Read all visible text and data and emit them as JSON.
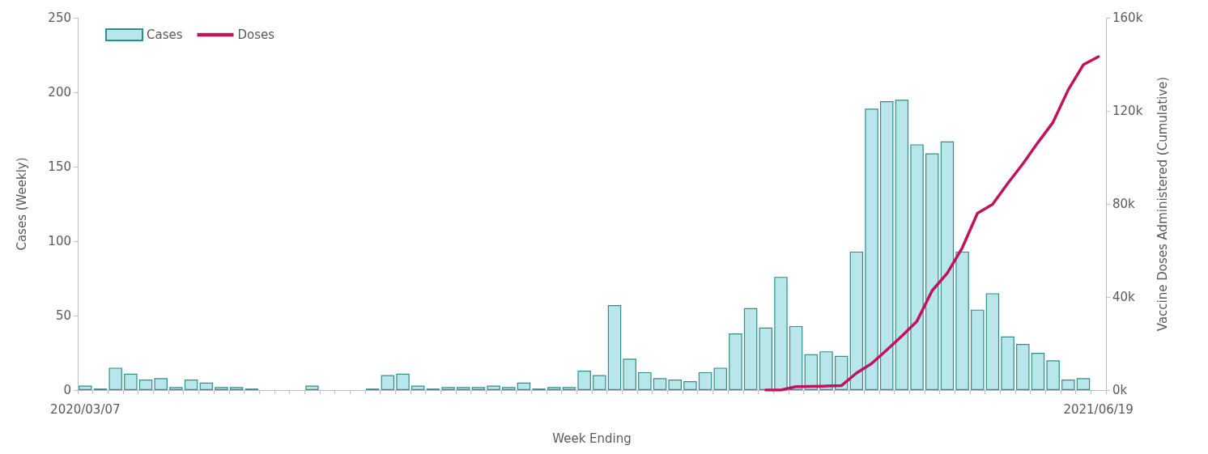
{
  "chart_data": {
    "type": "bar",
    "xlabel": "Week Ending",
    "ylabel": "Cases (Weekly)",
    "y2label": "Vaccine Doses Administered (Cumulative)",
    "categories": [
      "2020/03/07",
      null,
      null,
      null,
      null,
      null,
      null,
      null,
      null,
      null,
      null,
      null,
      null,
      null,
      null,
      null,
      null,
      null,
      null,
      null,
      null,
      null,
      null,
      null,
      null,
      null,
      null,
      null,
      null,
      null,
      null,
      null,
      null,
      null,
      null,
      null,
      null,
      null,
      null,
      null,
      null,
      null,
      null,
      null,
      null,
      null,
      null,
      null,
      null,
      null,
      null,
      null,
      null,
      null,
      null,
      null,
      null,
      null,
      null,
      null,
      null,
      null,
      null,
      null,
      null,
      null,
      null,
      "2021/06/19"
    ],
    "series": [
      {
        "name": "Cases",
        "color": "#b8e6ea",
        "values": [
          3,
          1,
          15,
          11,
          7,
          8,
          2,
          7,
          5,
          2,
          2,
          1,
          0,
          0,
          0,
          3,
          0,
          0,
          0,
          1,
          10,
          11,
          3,
          1,
          2,
          2,
          2,
          3,
          2,
          5,
          1,
          2,
          2,
          13,
          10,
          57,
          21,
          12,
          8,
          7,
          6,
          12,
          15,
          38,
          55,
          42,
          76,
          43,
          24,
          26,
          23,
          93,
          189,
          194,
          195,
          165,
          159,
          167,
          93,
          54,
          65,
          36,
          31,
          25,
          20,
          7,
          8,
          0
        ]
      },
      {
        "name": "Doses",
        "type": "line",
        "axis": "y2",
        "color": "#c0135f",
        "values": [
          null,
          null,
          null,
          null,
          null,
          null,
          null,
          null,
          null,
          null,
          null,
          null,
          null,
          null,
          null,
          null,
          null,
          null,
          null,
          null,
          null,
          null,
          null,
          null,
          null,
          null,
          null,
          null,
          null,
          null,
          null,
          null,
          null,
          null,
          null,
          null,
          null,
          null,
          null,
          null,
          null,
          null,
          null,
          null,
          null,
          0,
          0,
          1500,
          1600,
          1700,
          1900,
          7300,
          11400,
          17200,
          23200,
          29600,
          42700,
          50200,
          61200,
          76000,
          79800,
          88800,
          97200,
          106400,
          115100,
          129000,
          139800,
          143300
        ]
      }
    ],
    "ylim": [
      0,
      250
    ],
    "yticks": [
      0,
      50,
      100,
      150,
      200,
      250
    ],
    "y2lim": [
      0,
      160000
    ],
    "y2ticks": [
      {
        "value": 0,
        "label": "0k"
      },
      {
        "value": 40000,
        "label": "40k"
      },
      {
        "value": 80000,
        "label": "80k"
      },
      {
        "value": 120000,
        "label": "120k"
      },
      {
        "value": 160000,
        "label": "160k"
      }
    ],
    "legend": "top left",
    "grid": false,
    "marker": "none",
    "line_style": "solid"
  }
}
